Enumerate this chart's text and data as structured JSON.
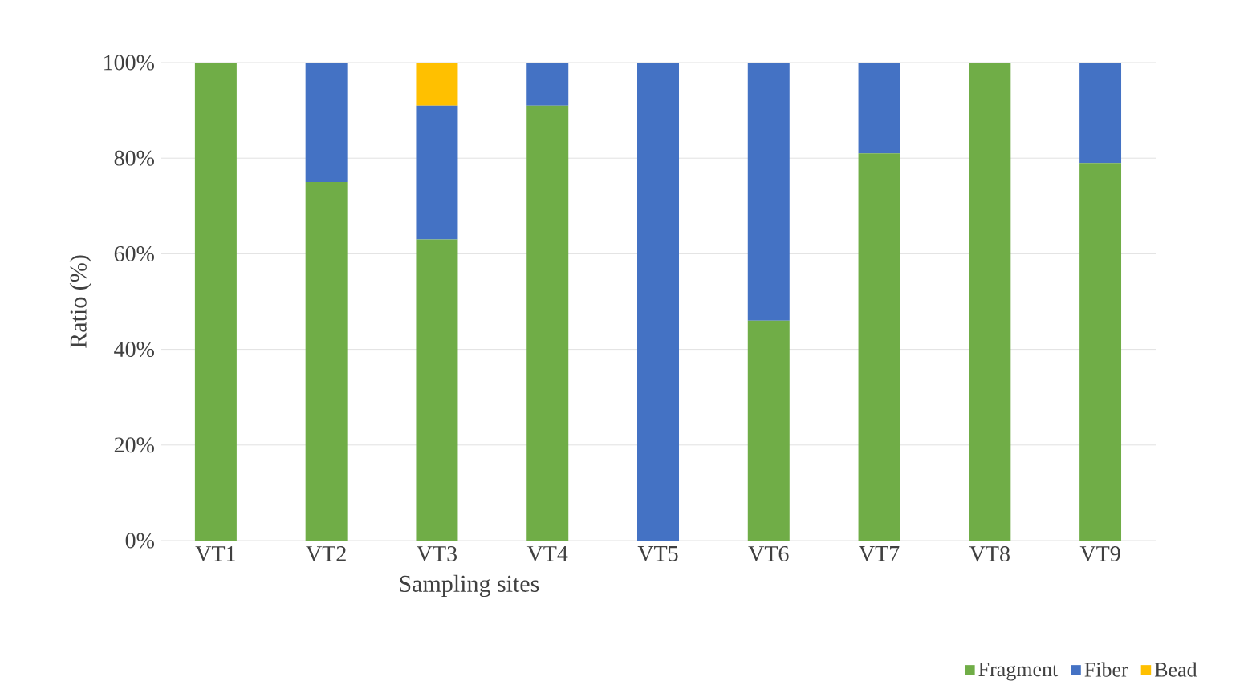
{
  "chart_data": {
    "type": "bar",
    "stacked": true,
    "xlabel": "Sampling sites",
    "ylabel": "Ratio (%)",
    "categories": [
      "VT1",
      "VT2",
      "VT3",
      "VT4",
      "VT5",
      "VT6",
      "VT7",
      "VT8",
      "VT9"
    ],
    "series": [
      {
        "name": "Fragment",
        "color": "#70ad47",
        "values": [
          100,
          75,
          63,
          91,
          0,
          46,
          81,
          100,
          79
        ]
      },
      {
        "name": "Fiber",
        "color": "#4472c4",
        "values": [
          0,
          25,
          28,
          9,
          100,
          54,
          19,
          0,
          21
        ]
      },
      {
        "name": "Bead",
        "color": "#ffc000",
        "values": [
          0,
          0,
          9,
          0,
          0,
          0,
          0,
          0,
          0
        ]
      }
    ],
    "ylim": [
      0,
      100
    ],
    "yticks": [
      {
        "value": 0,
        "label": "0%"
      },
      {
        "value": 20,
        "label": "20%"
      },
      {
        "value": 40,
        "label": "40%"
      },
      {
        "value": 60,
        "label": "60%"
      },
      {
        "value": 80,
        "label": "80%"
      },
      {
        "value": 100,
        "label": "100%"
      }
    ],
    "grid": "y",
    "legend": "bottom right"
  }
}
